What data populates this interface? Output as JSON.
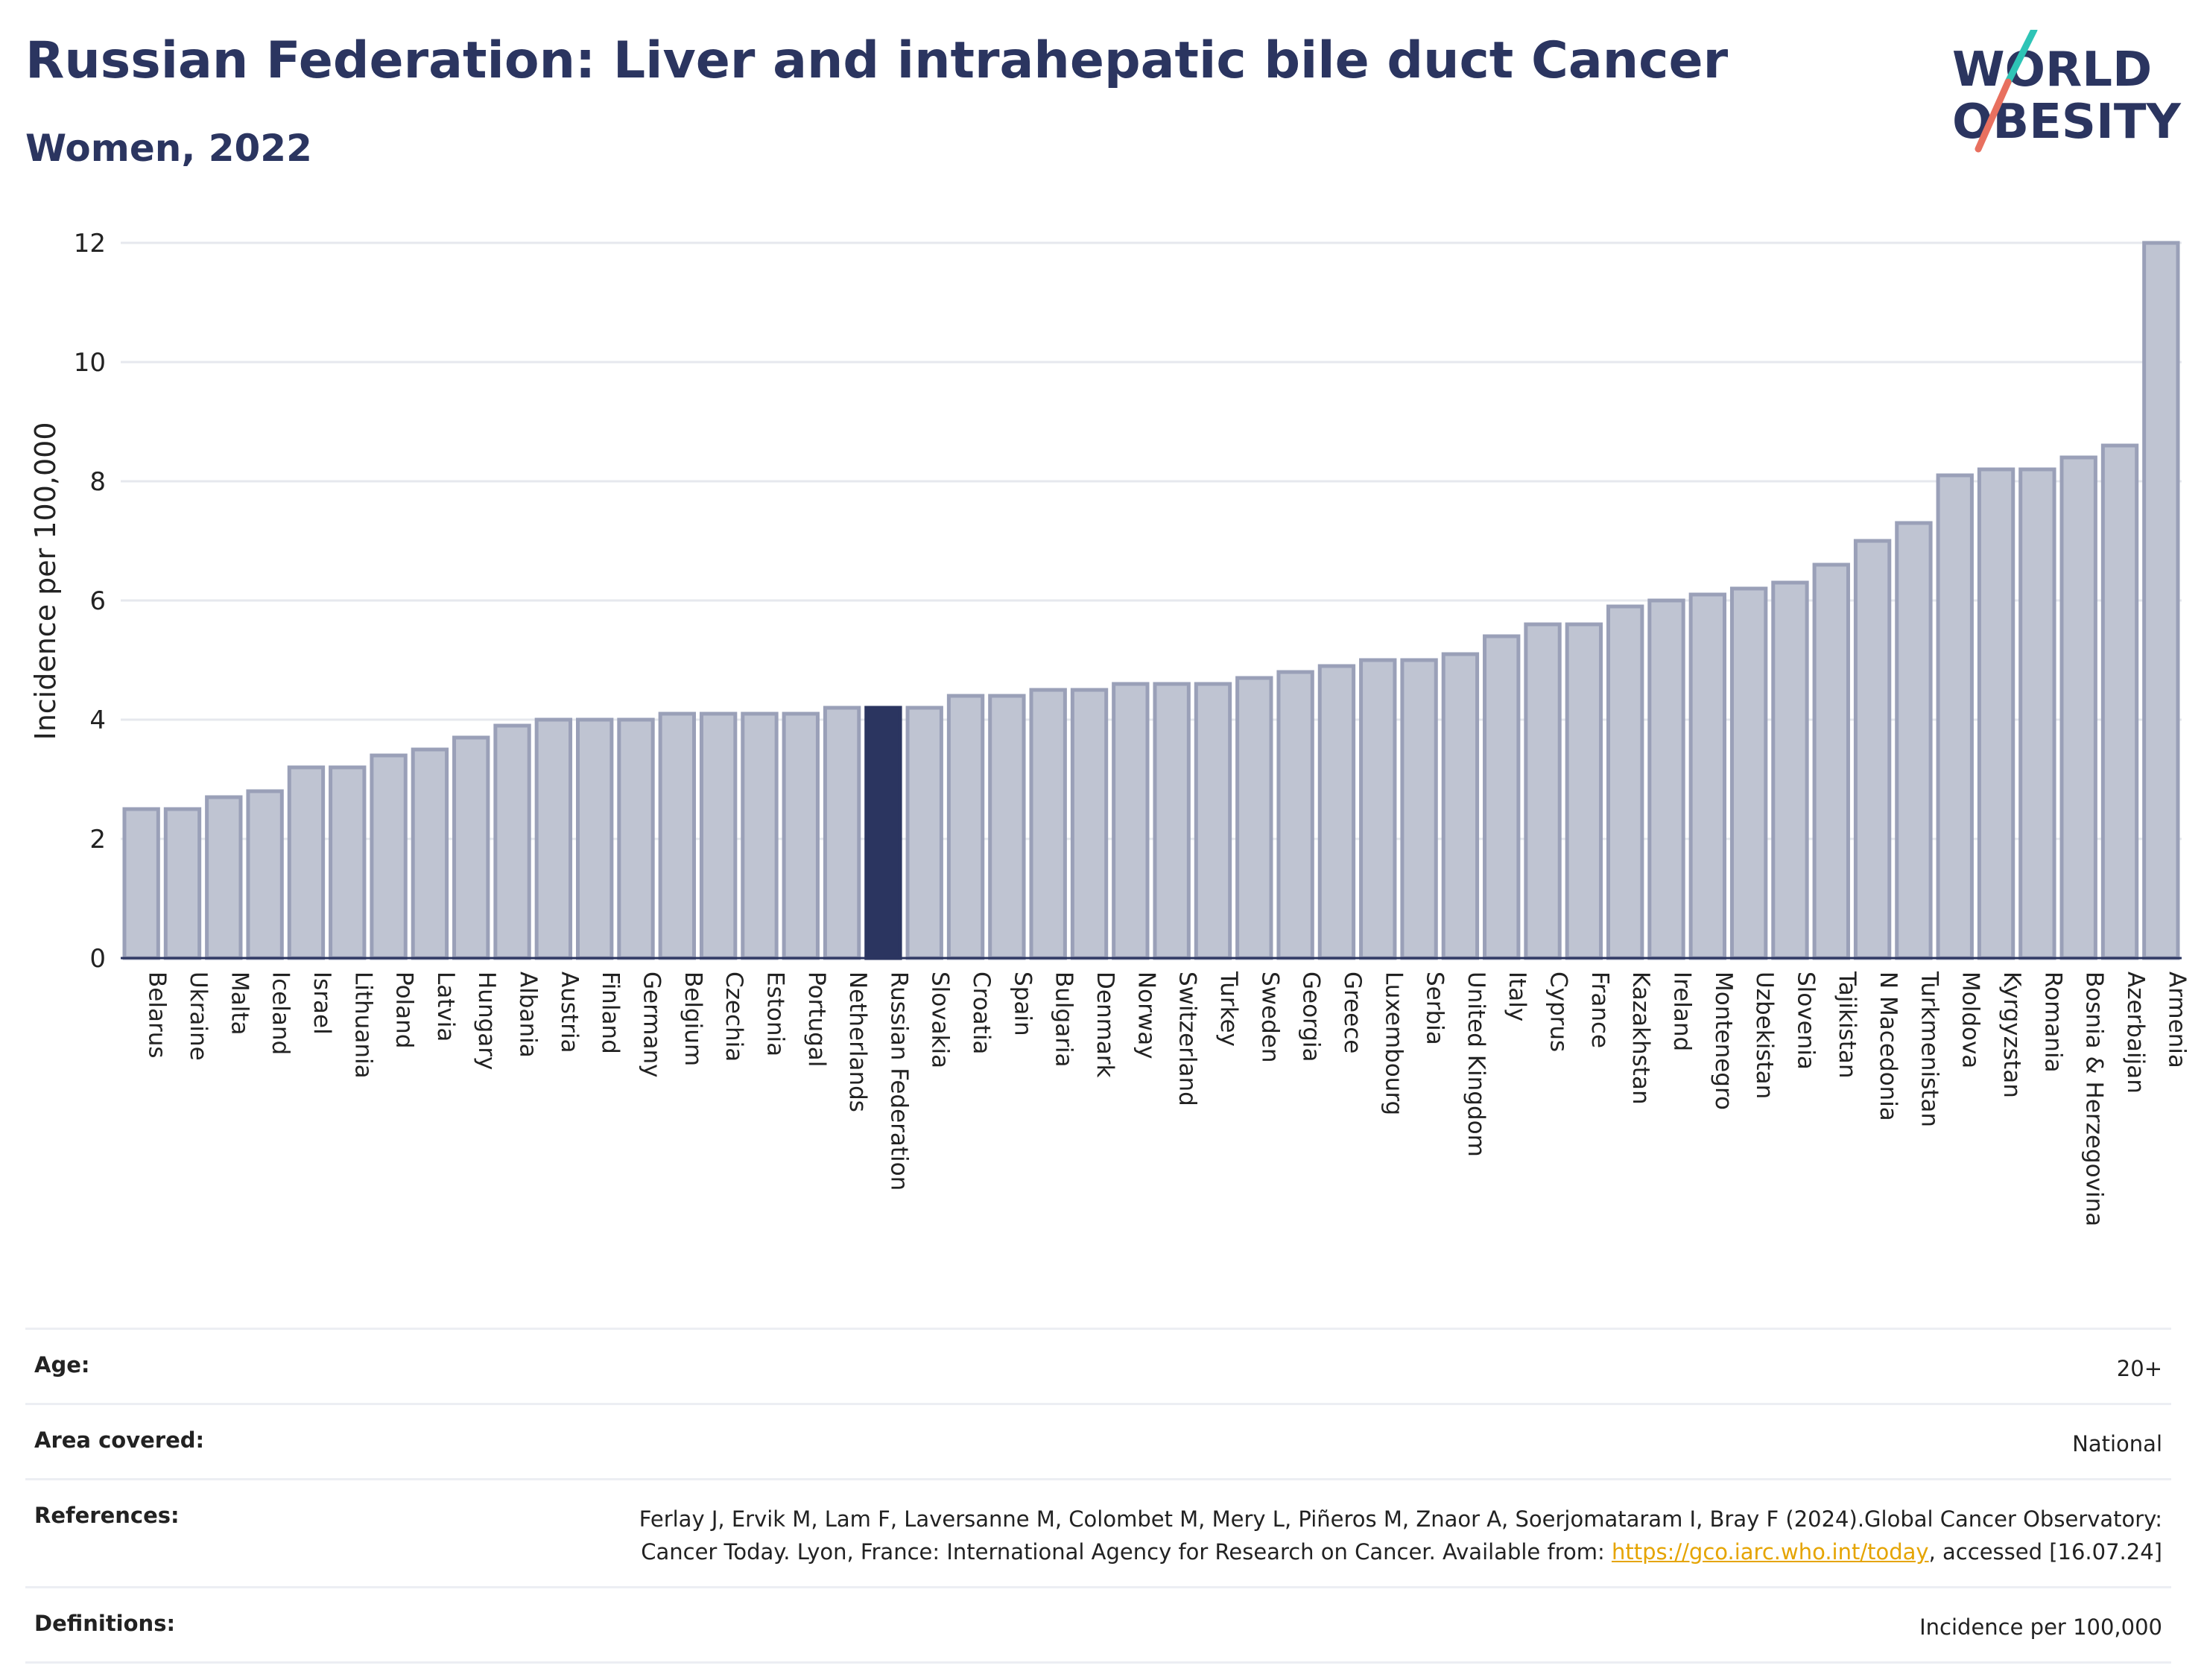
{
  "header": {
    "title": "Russian Federation: Liver and intrahepatic bile duct Cancer",
    "subtitle": "Women, 2022"
  },
  "logo": {
    "line1": "WORLD",
    "line2": "OBESITY"
  },
  "colors": {
    "bar": "#bfc4d2",
    "bar_border": "#9aa0b8",
    "highlight": "#2b3560",
    "logo_teal": "#2ec4b6",
    "logo_coral": "#e8705f",
    "link": "#e5a400"
  },
  "chart_data": {
    "type": "bar",
    "ylabel": "Incidence per 100,000",
    "ylim": [
      0,
      12
    ],
    "yticks": [
      0,
      2,
      4,
      6,
      8,
      10,
      12
    ],
    "grid": true,
    "highlight_category": "Russian Federation",
    "categories": [
      "Belarus",
      "Ukraine",
      "Malta",
      "Iceland",
      "Israel",
      "Lithuania",
      "Poland",
      "Latvia",
      "Hungary",
      "Albania",
      "Austria",
      "Finland",
      "Germany",
      "Belgium",
      "Czechia",
      "Estonia",
      "Portugal",
      "Netherlands",
      "Russian Federation",
      "Slovakia",
      "Croatia",
      "Spain",
      "Bulgaria",
      "Denmark",
      "Norway",
      "Switzerland",
      "Turkey",
      "Sweden",
      "Georgia",
      "Greece",
      "Luxembourg",
      "Serbia",
      "United Kingdom",
      "Italy",
      "Cyprus",
      "France",
      "Kazakhstan",
      "Ireland",
      "Montenegro",
      "Uzbekistan",
      "Slovenia",
      "Tajikistan",
      "N Macedonia",
      "Turkmenistan",
      "Moldova",
      "Kyrgyzstan",
      "Romania",
      "Bosnia & Herzegovina",
      "Azerbaijan",
      "Armenia"
    ],
    "values": [
      2.5,
      2.5,
      2.7,
      2.8,
      3.2,
      3.2,
      3.4,
      3.5,
      3.7,
      3.9,
      4.0,
      4.0,
      4.0,
      4.1,
      4.1,
      4.1,
      4.1,
      4.2,
      4.2,
      4.2,
      4.4,
      4.4,
      4.5,
      4.5,
      4.6,
      4.6,
      4.6,
      4.7,
      4.8,
      4.9,
      5.0,
      5.0,
      5.1,
      5.4,
      5.6,
      5.6,
      5.9,
      6.0,
      6.1,
      6.2,
      6.3,
      6.6,
      7.0,
      7.3,
      8.1,
      8.2,
      8.2,
      8.4,
      8.6,
      12.0
    ]
  },
  "info": {
    "age_label": "Age:",
    "age_value": "20+",
    "area_label": "Area covered:",
    "area_value": "National",
    "references_label": "References:",
    "references_text_1": "Ferlay J, Ervik M, Lam F, Laversanne M, Colombet M, Mery L, Piñeros M, Znaor A, Soerjomataram I, Bray F (2024).Global Cancer Observatory: Cancer Today. Lyon, France: International Agency for Research on Cancer. Available from:",
    "references_link": "https://gco.iarc.who.int/today",
    "references_text_2": ", accessed [16.07.24]",
    "definitions_label": "Definitions:",
    "definitions_value": "Incidence per 100,000"
  }
}
